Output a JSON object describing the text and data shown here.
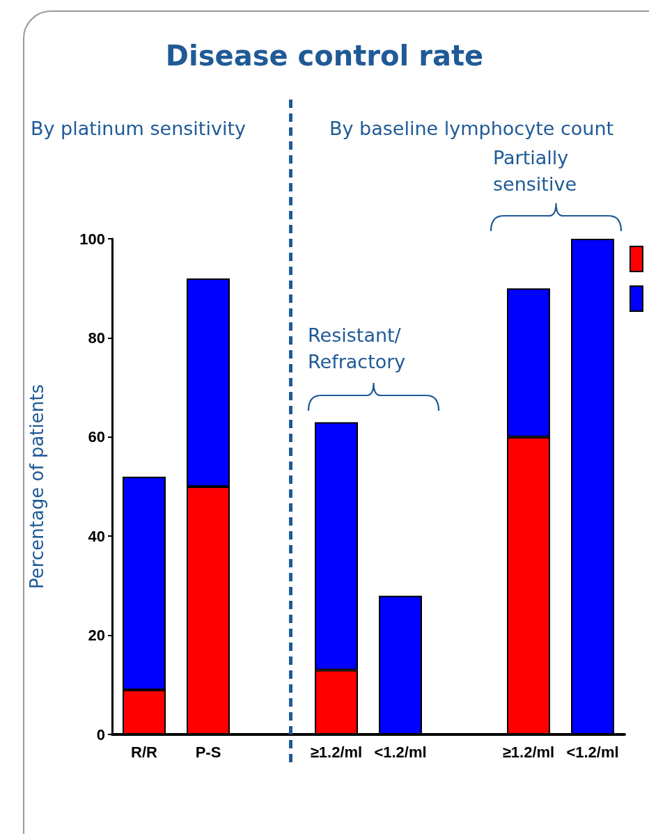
{
  "chart_data": {
    "type": "bar",
    "title": "Disease control rate",
    "ylabel": "Percentage of patients",
    "categories": [
      "R/R",
      "P-S",
      null,
      "≥1.2/ml",
      "<1.2/ml",
      null,
      "≥1.2/ml",
      "<1.2/ml"
    ],
    "series": [
      {
        "color": "#ff0000",
        "values": [
          9,
          50,
          null,
          13,
          0,
          null,
          60,
          0
        ]
      },
      {
        "color": "#0000ff",
        "values": [
          43,
          42,
          null,
          50,
          28,
          null,
          30,
          100
        ]
      }
    ],
    "stacked": true,
    "ylim": [
      0,
      100
    ],
    "yticks": [
      0,
      20,
      40,
      60,
      80,
      100
    ],
    "grid": false,
    "annotations": [
      "By platinum sensitivity",
      "By baseline lymphocyte count",
      "Resistant/ Refractory",
      "Partially sensitive"
    ]
  }
}
